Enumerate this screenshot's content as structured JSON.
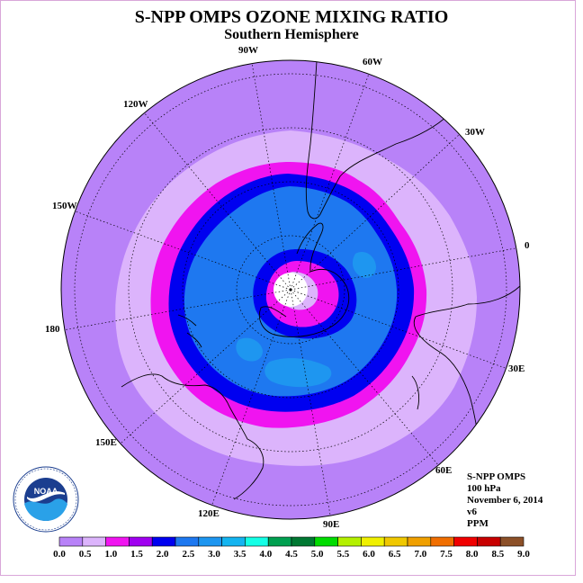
{
  "title": "S-NPP OMPS OZONE MIXING RATIO",
  "subtitle": "Southern Hemisphere",
  "meridian_labels": {
    "w90": "90W",
    "w60": "60W",
    "w30": "30W",
    "e0": "0",
    "w120": "120W",
    "w150": "150W",
    "d180": "180",
    "e30": "30E",
    "e60": "60E",
    "e90": "90E",
    "e120": "120E",
    "e150": "150E"
  },
  "info": {
    "instrument": "S-NPP OMPS",
    "level": "100 hPa",
    "date": "November 6, 2014",
    "version": "v6",
    "units": "PPM"
  },
  "logo": {
    "text": "NOAA",
    "ring_text": "NATIONAL OCEANIC AND ATMOSPHERIC ADMINISTRATION · U.S. DEPARTMENT OF COMMERCE"
  },
  "colorbar": {
    "colors": [
      "#b882f8",
      "#dcb4fc",
      "#f014f0",
      "#a000f0",
      "#0000f0",
      "#1e78f0",
      "#1e96f0",
      "#14b4f0",
      "#14ffe6",
      "#00a050",
      "#007832",
      "#00dc00",
      "#b4f000",
      "#f0f000",
      "#f0c800",
      "#f0a000",
      "#f06e00",
      "#f00000",
      "#c80000",
      "#8c5028"
    ],
    "ticks": [
      "0.0",
      "0.5",
      "1.0",
      "1.5",
      "2.0",
      "2.5",
      "3.0",
      "3.5",
      "4.0",
      "4.5",
      "5.0",
      "5.5",
      "6.0",
      "6.5",
      "7.0",
      "7.5",
      "8.0",
      "8.5",
      "9.0"
    ]
  },
  "map_colors": {
    "band_0_0": "#b882f8",
    "band_0_5": "#dcb4fc",
    "band_1_0": "#f014f0",
    "band_1_5": "#0000f0",
    "band_2_0": "#1e78f0",
    "band_2_5": "#1e96f0",
    "pole_missing": "#ffffff"
  }
}
